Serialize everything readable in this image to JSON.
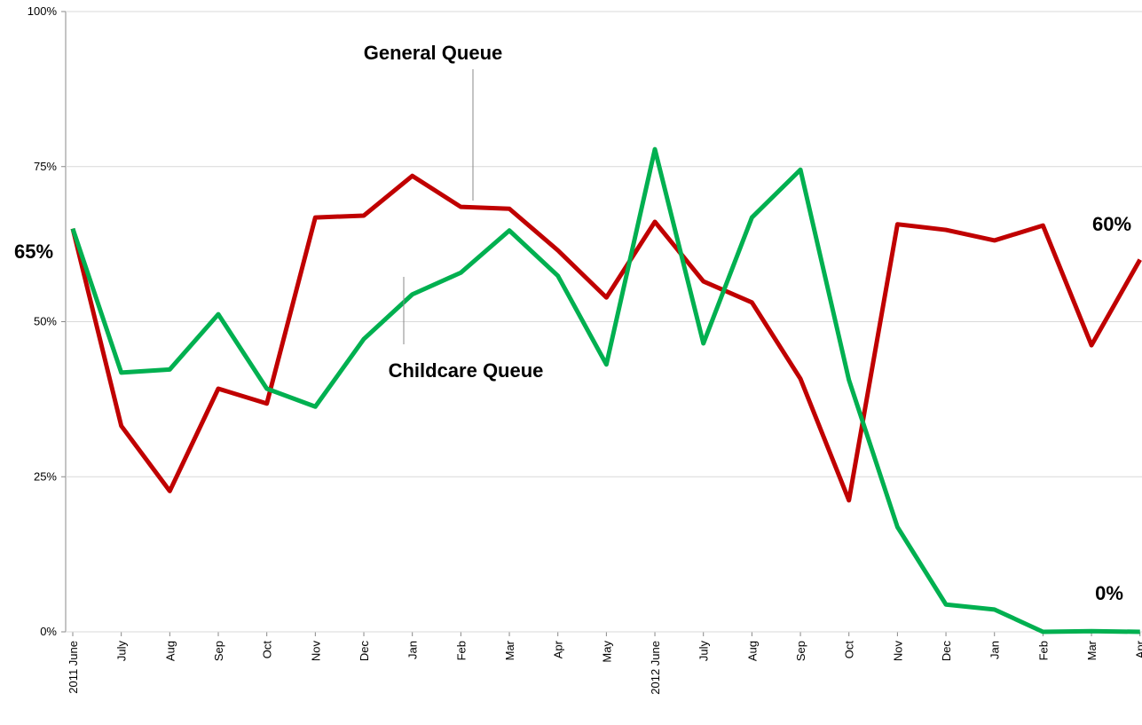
{
  "chart_data": {
    "type": "line",
    "categories": [
      "2011 June",
      "July",
      "Aug",
      "Sep",
      "Oct",
      "Nov",
      "Dec",
      "Jan",
      "Feb",
      "Mar",
      "Apr",
      "May",
      "2012 June",
      "July",
      "Aug",
      "Sep",
      "Oct",
      "Nov",
      "Dec",
      "Jan",
      "Feb",
      "Mar",
      "Apr"
    ],
    "series": [
      {
        "name": "General Queue",
        "color": "#c00000",
        "values": [
          65,
          33.2,
          22.7,
          39.2,
          36.8,
          66.8,
          67.1,
          73.5,
          68.5,
          68.2,
          61.5,
          53.9,
          66.1,
          56.5,
          53.1,
          40.8,
          21.2,
          65.7,
          64.8,
          63.1,
          65.5,
          46.2,
          60
        ]
      },
      {
        "name": "Childcare Queue",
        "color": "#00b050",
        "values": [
          65,
          41.8,
          42.3,
          51.2,
          39.2,
          36.3,
          47.2,
          54.4,
          57.9,
          64.7,
          57.4,
          43.1,
          77.8,
          46.5,
          66.8,
          74.5,
          40.6,
          16.9,
          4.4,
          3.6,
          0,
          0.1,
          0
        ]
      }
    ],
    "ylim": [
      0,
      100
    ],
    "yticks": [
      {
        "value": 0,
        "label": "0%"
      },
      {
        "value": 25,
        "label": "25%"
      },
      {
        "value": 50,
        "label": "50%"
      },
      {
        "value": 75,
        "label": "75%"
      },
      {
        "value": 100,
        "label": "100%"
      }
    ],
    "grid": true,
    "annotations": [
      "65%",
      "60%",
      "0%"
    ]
  }
}
